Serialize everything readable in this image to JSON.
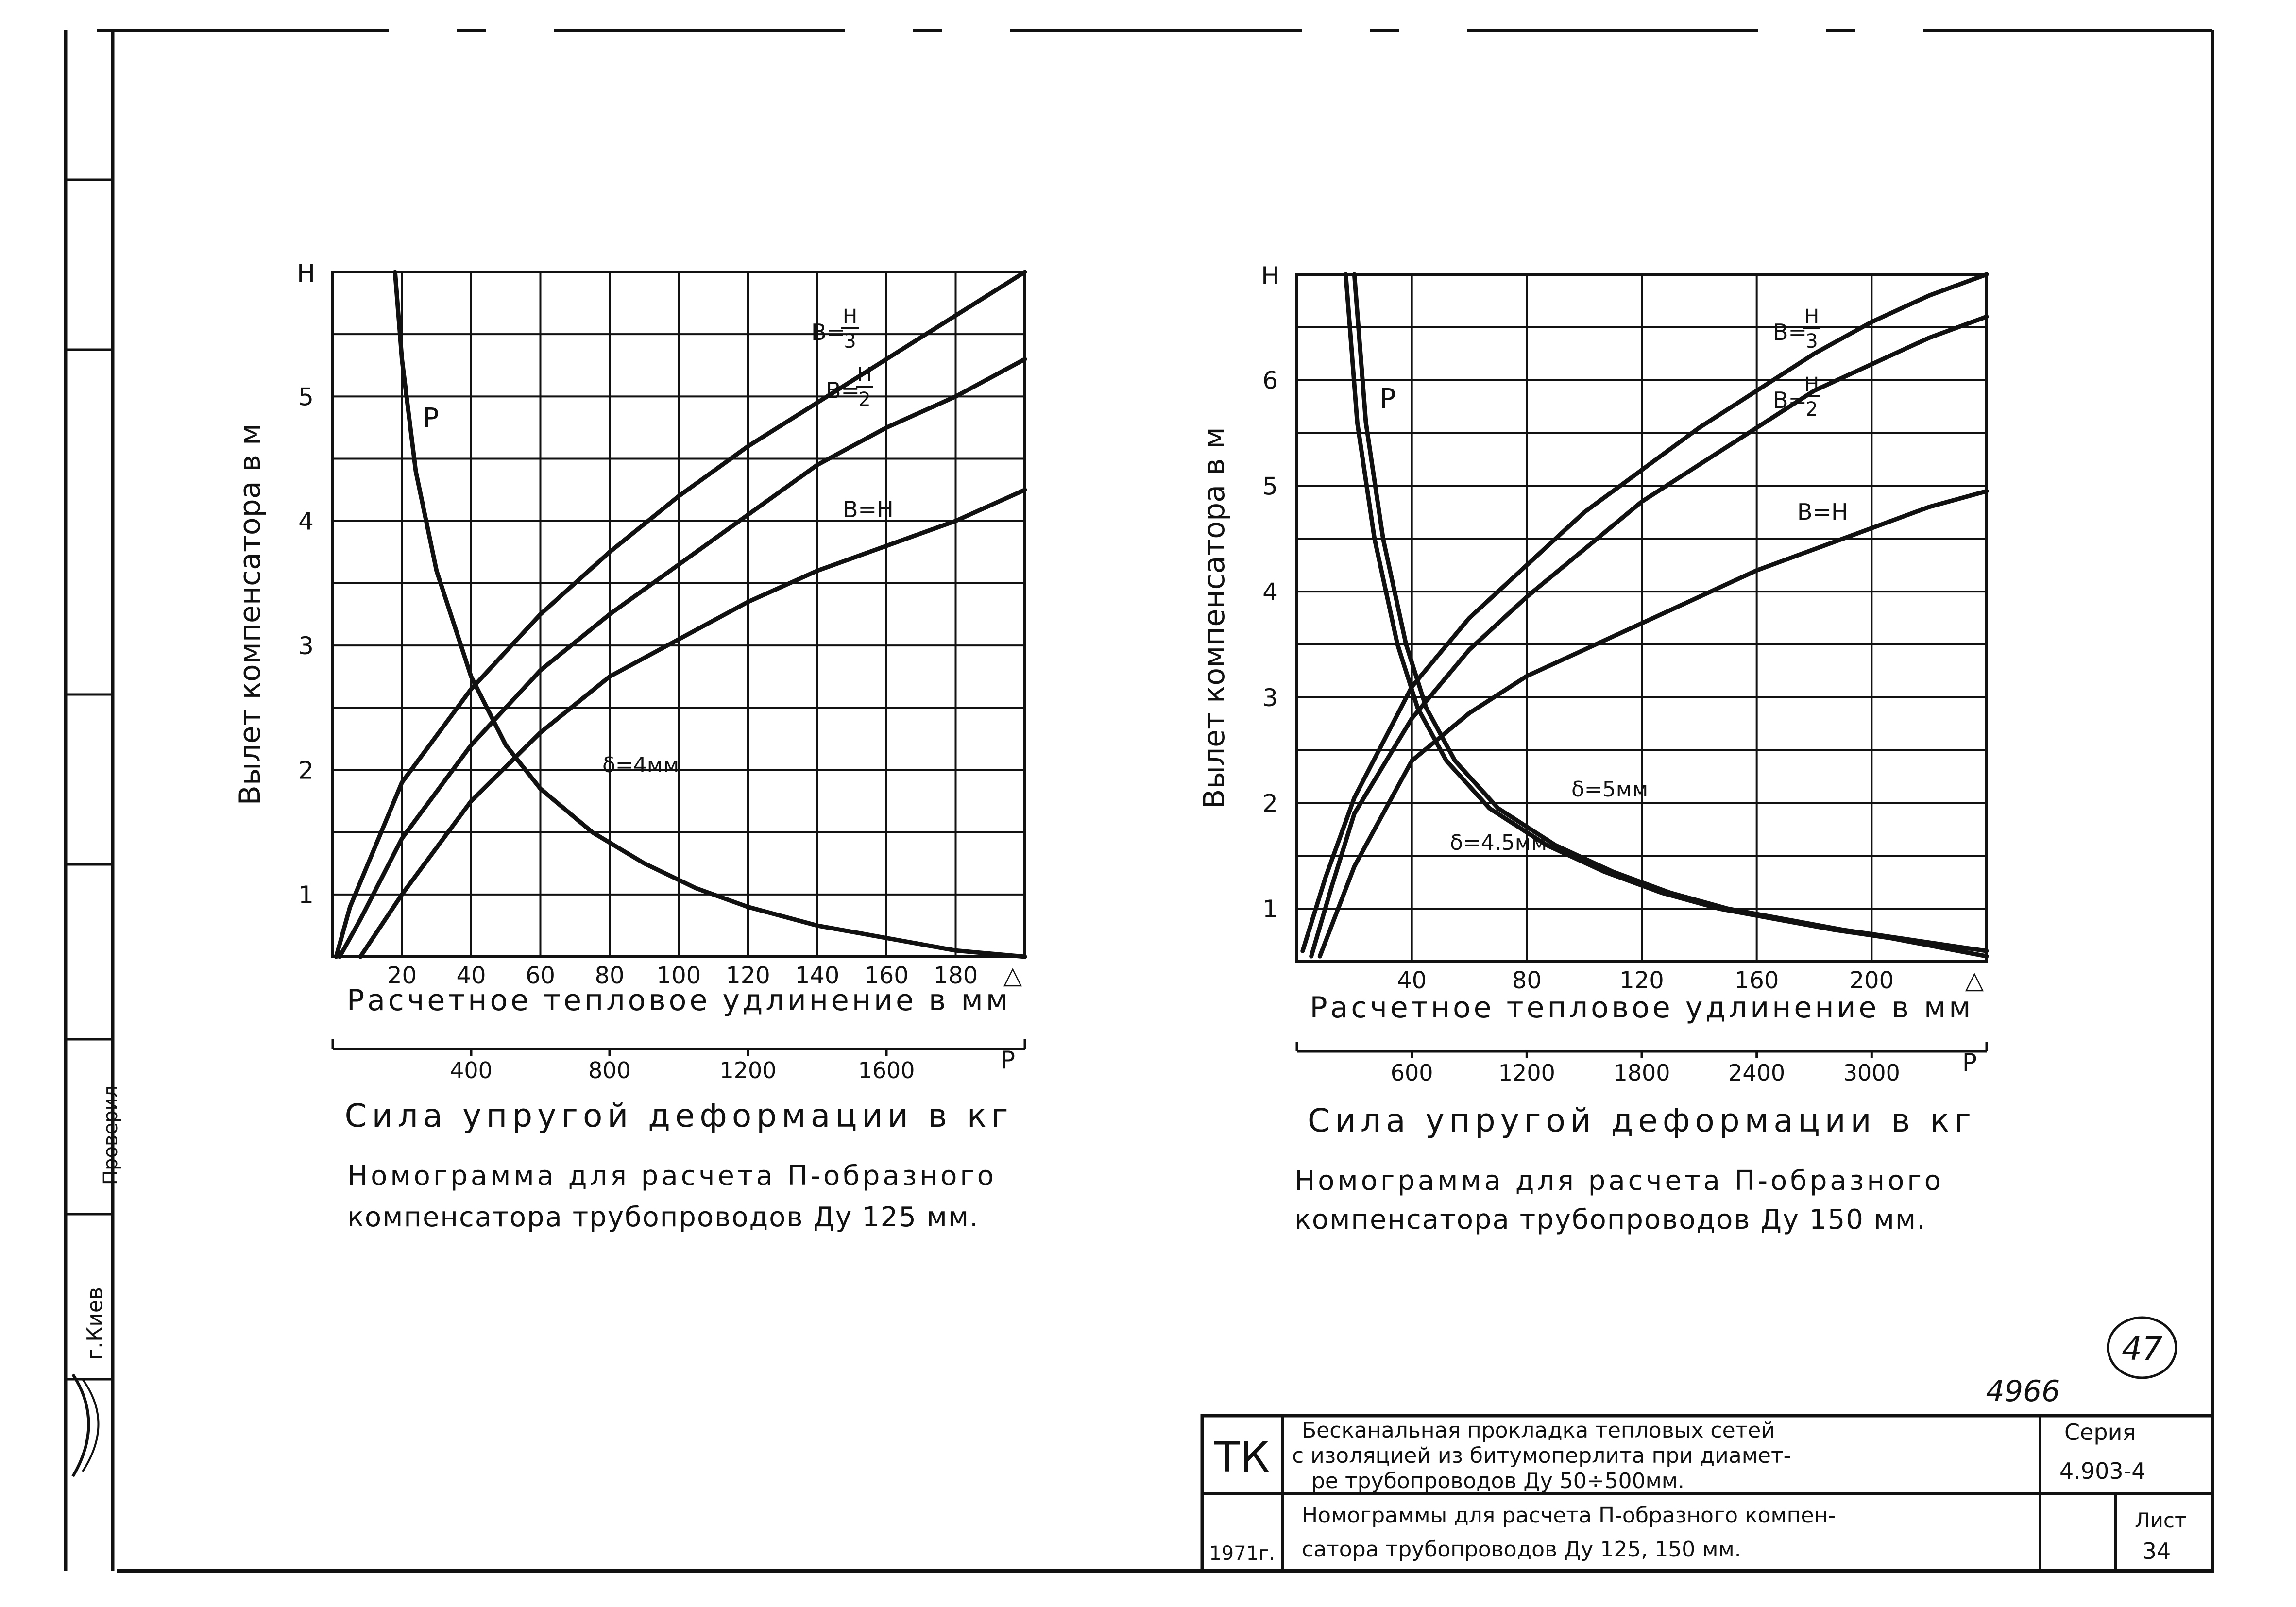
{
  "sheet": {
    "doc_number": "4966",
    "page_mark": "47",
    "side_labels": [
      "г.Киев",
      "Проверил"
    ]
  },
  "title_block": {
    "org": "ТК",
    "year": "1971г.",
    "project_title": [
      "Бесканальная прокладка тепловых сетей",
      "с изоляцией из битумоперлита при диамет-",
      "ре трубопроводов Ду 50÷500мм."
    ],
    "sheet_title": [
      "Номограммы для расчета П-образного компен-",
      "сатора трубопроводов Ду 125, 150 мм."
    ],
    "series_label": "Серия",
    "series_value": "4.903-4",
    "sheet_label": "Лист",
    "sheet_value": "34"
  },
  "chart_data": [
    {
      "type": "line",
      "title": "Номограмма для расчета П-образного компенсатора трубопроводов Ду 125 мм.",
      "ylabel": "Вылет компенсатора в м",
      "y_axis_symbol": "Н",
      "xlabel": "Расчетное тепловое удлинение в мм",
      "x_axis_symbol": "△",
      "x2label": "Сила упругой деформации в кг",
      "x2_axis_symbol": "Р",
      "x_ticks": [
        20,
        40,
        60,
        80,
        100,
        120,
        140,
        160,
        180
      ],
      "x_tick_labels": [
        "20",
        "40",
        "60",
        "80",
        "100",
        "120",
        "140",
        "160",
        "180"
      ],
      "x_range": [
        0,
        200
      ],
      "y_ticks": [
        1,
        2,
        3,
        4,
        5
      ],
      "y_tick_labels": [
        "1",
        "2",
        "3",
        "4",
        "5"
      ],
      "y_range": [
        0.5,
        6.0
      ],
      "x2_ticks": [
        400,
        800,
        1200,
        1600
      ],
      "x2_tick_labels": [
        "400",
        "800",
        "1200",
        "1600"
      ],
      "x2_range": [
        0,
        2000
      ],
      "series": [
        {
          "name": "В=Н/3",
          "label_prefix": "В=",
          "label_num": "Н",
          "label_den": "3",
          "x": [
            1,
            5,
            20,
            40,
            60,
            80,
            100,
            120,
            140,
            160,
            180,
            200
          ],
          "y": [
            0.5,
            0.9,
            1.9,
            2.65,
            3.25,
            3.75,
            4.2,
            4.6,
            4.95,
            5.3,
            5.65,
            6.0
          ]
        },
        {
          "name": "В=Н/2",
          "label_prefix": "В=",
          "label_num": "Н",
          "label_den": "2",
          "x": [
            2,
            8,
            20,
            40,
            60,
            80,
            100,
            120,
            140,
            160,
            180,
            200
          ],
          "y": [
            0.5,
            0.8,
            1.45,
            2.2,
            2.8,
            3.25,
            3.65,
            4.05,
            4.45,
            4.75,
            5.0,
            5.3
          ]
        },
        {
          "name": "В=Н",
          "label_prefix": "В=Н",
          "x": [
            8,
            20,
            40,
            60,
            80,
            100,
            120,
            140,
            160,
            180,
            200
          ],
          "y": [
            0.5,
            1.0,
            1.75,
            2.3,
            2.75,
            3.05,
            3.35,
            3.6,
            3.8,
            4.0,
            4.25
          ]
        },
        {
          "name": "P (δ=4мм)",
          "label": "Р",
          "label2": "δ=4мм",
          "x": [
            18,
            20,
            24,
            30,
            40,
            50,
            60,
            75,
            90,
            105,
            120,
            140,
            160,
            180,
            200
          ],
          "y": [
            6.0,
            5.3,
            4.4,
            3.6,
            2.75,
            2.2,
            1.85,
            1.5,
            1.25,
            1.05,
            0.9,
            0.75,
            0.65,
            0.55,
            0.5
          ]
        }
      ]
    },
    {
      "type": "line",
      "title": "Номограмма для расчета П-образного компенсатора трубопроводов Ду 150 мм.",
      "ylabel": "Вылет компенсатора в м",
      "y_axis_symbol": "Н",
      "xlabel": "Расчетное тепловое удлинение в мм",
      "x_axis_symbol": "△",
      "x2label": "Сила упругой деформации в кг",
      "x2_axis_symbol": "Р",
      "x_ticks": [
        40,
        80,
        120,
        160,
        200
      ],
      "x_tick_labels": [
        "40",
        "80",
        "120",
        "160",
        "200"
      ],
      "x_range": [
        0,
        240
      ],
      "y_ticks": [
        1,
        2,
        3,
        4,
        5,
        6
      ],
      "y_tick_labels": [
        "1",
        "2",
        "3",
        "4",
        "5",
        "6"
      ],
      "y_range": [
        0.5,
        7.0
      ],
      "x2_ticks": [
        600,
        1200,
        1800,
        2400,
        3000
      ],
      "x2_tick_labels": [
        "600",
        "1200",
        "1800",
        "2400",
        "3000"
      ],
      "x2_range": [
        0,
        3600
      ],
      "series": [
        {
          "name": "В=Н/3",
          "label_prefix": "В=",
          "label_num": "Н",
          "label_den": "3",
          "x": [
            2,
            10,
            20,
            40,
            60,
            80,
            100,
            120,
            140,
            160,
            180,
            200,
            220,
            240
          ],
          "y": [
            0.6,
            1.3,
            2.05,
            3.1,
            3.75,
            4.25,
            4.75,
            5.15,
            5.55,
            5.9,
            6.25,
            6.55,
            6.8,
            7.0
          ]
        },
        {
          "name": "В=Н/2",
          "label_prefix": "В=",
          "label_num": "Н",
          "label_den": "2",
          "x": [
            5,
            12,
            20,
            40,
            60,
            80,
            100,
            120,
            140,
            160,
            180,
            200,
            220,
            240
          ],
          "y": [
            0.55,
            1.2,
            1.9,
            2.8,
            3.45,
            3.95,
            4.4,
            4.85,
            5.2,
            5.55,
            5.9,
            6.15,
            6.4,
            6.6
          ]
        },
        {
          "name": "В=Н",
          "label_prefix": "В=Н",
          "x": [
            8,
            20,
            40,
            60,
            80,
            100,
            120,
            140,
            160,
            180,
            200,
            220,
            240
          ],
          "y": [
            0.55,
            1.4,
            2.4,
            2.85,
            3.2,
            3.45,
            3.7,
            3.95,
            4.2,
            4.4,
            4.6,
            4.8,
            4.95
          ]
        },
        {
          "name": "P (δ=5мм)",
          "label": "Р",
          "label2": "δ=5мм",
          "x": [
            20,
            24,
            30,
            38,
            45,
            55,
            70,
            90,
            110,
            130,
            150,
            170,
            190,
            210,
            240
          ],
          "y": [
            7.0,
            5.6,
            4.5,
            3.5,
            2.9,
            2.4,
            1.95,
            1.6,
            1.35,
            1.15,
            1.0,
            0.9,
            0.8,
            0.72,
            0.6
          ]
        },
        {
          "name": "P (δ=4.5мм)",
          "label2": "δ=4.5мм",
          "x": [
            17,
            21,
            27,
            35,
            42,
            52,
            67,
            87,
            107,
            127,
            147,
            167,
            187,
            207,
            240
          ],
          "y": [
            7.0,
            5.6,
            4.5,
            3.5,
            2.9,
            2.4,
            1.95,
            1.6,
            1.35,
            1.15,
            1.0,
            0.9,
            0.8,
            0.72,
            0.55
          ]
        }
      ]
    }
  ]
}
